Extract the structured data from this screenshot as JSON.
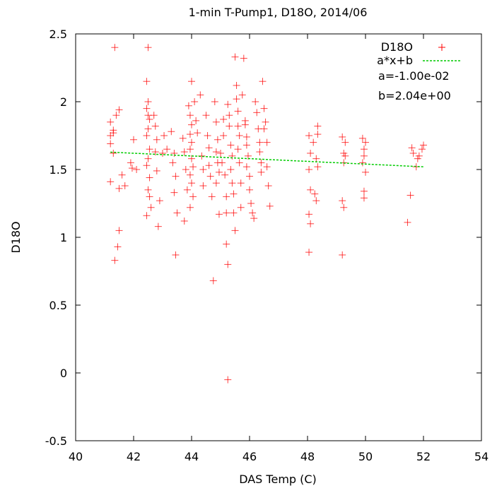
{
  "chart_data": {
    "type": "scatter",
    "title": "1-min T-Pump1, D18O, 2014/06",
    "xlabel": "DAS Temp (C)",
    "ylabel": "D18O",
    "xlim": [
      40,
      54
    ],
    "ylim": [
      -0.5,
      2.5
    ],
    "xticks": [
      "40",
      "42",
      "44",
      "46",
      "48",
      "50",
      "52",
      "54"
    ],
    "yticks": [
      "-0.5",
      "0",
      "0.5",
      "1",
      "1.5",
      "2",
      "2.5"
    ],
    "grid": false,
    "legend_position": "top-right",
    "series": [
      {
        "name": "D18O",
        "marker": "+",
        "color": "#ff0000",
        "points": [
          [
            41.2,
            1.85
          ],
          [
            41.2,
            1.75
          ],
          [
            41.3,
            1.79
          ],
          [
            41.2,
            1.69
          ],
          [
            41.3,
            1.62
          ],
          [
            41.2,
            1.41
          ],
          [
            41.3,
            1.77
          ],
          [
            41.35,
            2.4
          ],
          [
            41.4,
            1.9
          ],
          [
            41.45,
            0.93
          ],
          [
            41.35,
            0.83
          ],
          [
            41.5,
            1.05
          ],
          [
            41.5,
            1.36
          ],
          [
            41.5,
            1.94
          ],
          [
            41.6,
            1.46
          ],
          [
            41.7,
            1.38
          ],
          [
            41.9,
            1.55
          ],
          [
            41.95,
            1.51
          ],
          [
            42.1,
            1.5
          ],
          [
            42.0,
            1.72
          ],
          [
            42.5,
            2.4
          ],
          [
            42.45,
            2.15
          ],
          [
            42.5,
            2.0
          ],
          [
            42.45,
            1.95
          ],
          [
            42.5,
            1.9
          ],
          [
            42.55,
            1.87
          ],
          [
            42.5,
            1.8
          ],
          [
            42.45,
            1.75
          ],
          [
            42.55,
            1.65
          ],
          [
            42.5,
            1.58
          ],
          [
            42.45,
            1.53
          ],
          [
            42.55,
            1.44
          ],
          [
            42.5,
            1.35
          ],
          [
            42.55,
            1.3
          ],
          [
            42.45,
            1.16
          ],
          [
            42.6,
            1.22
          ],
          [
            42.7,
            1.9
          ],
          [
            42.75,
            1.82
          ],
          [
            42.8,
            1.72
          ],
          [
            42.75,
            1.63
          ],
          [
            42.8,
            1.49
          ],
          [
            42.85,
            1.08
          ],
          [
            42.9,
            1.27
          ],
          [
            43.0,
            1.62
          ],
          [
            43.05,
            1.75
          ],
          [
            43.15,
            1.65
          ],
          [
            43.3,
            1.78
          ],
          [
            43.4,
            1.62
          ],
          [
            43.35,
            1.55
          ],
          [
            43.45,
            1.45
          ],
          [
            43.4,
            1.33
          ],
          [
            43.5,
            1.18
          ],
          [
            43.45,
            0.87
          ],
          [
            43.7,
            1.73
          ],
          [
            43.75,
            1.63
          ],
          [
            43.8,
            1.5
          ],
          [
            43.85,
            1.35
          ],
          [
            43.75,
            1.12
          ],
          [
            43.9,
            1.97
          ],
          [
            43.95,
            1.9
          ],
          [
            44.0,
            1.83
          ],
          [
            43.95,
            1.76
          ],
          [
            44.0,
            1.7
          ],
          [
            43.95,
            1.65
          ],
          [
            44.0,
            1.58
          ],
          [
            44.05,
            1.52
          ],
          [
            43.95,
            1.46
          ],
          [
            44.0,
            1.4
          ],
          [
            44.05,
            1.3
          ],
          [
            43.95,
            1.22
          ],
          [
            44.0,
            2.15
          ],
          [
            44.1,
            2.0
          ],
          [
            44.15,
            1.86
          ],
          [
            44.2,
            1.77
          ],
          [
            44.3,
            2.05
          ],
          [
            44.35,
            1.6
          ],
          [
            44.4,
            1.5
          ],
          [
            44.4,
            1.38
          ],
          [
            44.5,
            1.9
          ],
          [
            44.55,
            1.75
          ],
          [
            44.6,
            1.66
          ],
          [
            44.6,
            1.53
          ],
          [
            44.65,
            1.45
          ],
          [
            44.7,
            1.3
          ],
          [
            44.75,
            0.68
          ],
          [
            44.8,
            2.0
          ],
          [
            44.85,
            1.85
          ],
          [
            44.9,
            1.72
          ],
          [
            44.85,
            1.63
          ],
          [
            44.9,
            1.55
          ],
          [
            44.95,
            1.48
          ],
          [
            44.85,
            1.4
          ],
          [
            44.95,
            1.17
          ],
          [
            45.0,
            1.62
          ],
          [
            45.05,
            1.55
          ],
          [
            45.1,
            1.75
          ],
          [
            45.1,
            1.87
          ],
          [
            45.15,
            1.46
          ],
          [
            45.2,
            1.3
          ],
          [
            45.2,
            1.18
          ],
          [
            45.2,
            0.95
          ],
          [
            45.25,
            0.8
          ],
          [
            45.25,
            -0.05
          ],
          [
            45.25,
            1.98
          ],
          [
            45.3,
            1.9
          ],
          [
            45.3,
            1.82
          ],
          [
            45.35,
            1.68
          ],
          [
            45.4,
            1.6
          ],
          [
            45.35,
            1.5
          ],
          [
            45.4,
            1.4
          ],
          [
            45.45,
            1.32
          ],
          [
            45.45,
            1.18
          ],
          [
            45.5,
            1.05
          ],
          [
            45.5,
            2.33
          ],
          [
            45.55,
            2.12
          ],
          [
            45.55,
            2.02
          ],
          [
            45.6,
            1.93
          ],
          [
            45.6,
            1.82
          ],
          [
            45.65,
            1.75
          ],
          [
            45.6,
            1.65
          ],
          [
            45.65,
            1.55
          ],
          [
            45.7,
            1.4
          ],
          [
            45.7,
            1.22
          ],
          [
            45.75,
            2.05
          ],
          [
            45.8,
            2.32
          ],
          [
            45.85,
            1.86
          ],
          [
            45.85,
            1.83
          ],
          [
            45.9,
            1.74
          ],
          [
            45.9,
            1.68
          ],
          [
            45.95,
            1.6
          ],
          [
            45.9,
            1.52
          ],
          [
            46.0,
            1.45
          ],
          [
            46.0,
            1.35
          ],
          [
            46.05,
            1.25
          ],
          [
            46.1,
            1.18
          ],
          [
            46.15,
            1.14
          ],
          [
            46.2,
            2.0
          ],
          [
            46.25,
            1.92
          ],
          [
            46.3,
            1.8
          ],
          [
            46.35,
            1.7
          ],
          [
            46.35,
            1.63
          ],
          [
            46.4,
            1.55
          ],
          [
            46.4,
            1.48
          ],
          [
            46.45,
            2.15
          ],
          [
            46.5,
            1.95
          ],
          [
            46.55,
            1.85
          ],
          [
            46.6,
            1.7
          ],
          [
            46.6,
            1.52
          ],
          [
            46.65,
            1.38
          ],
          [
            46.7,
            1.23
          ],
          [
            46.5,
            1.8
          ],
          [
            48.05,
            1.75
          ],
          [
            48.1,
            1.62
          ],
          [
            48.05,
            1.5
          ],
          [
            48.1,
            1.35
          ],
          [
            48.05,
            1.17
          ],
          [
            48.1,
            1.1
          ],
          [
            48.05,
            0.89
          ],
          [
            48.2,
            1.7
          ],
          [
            48.25,
            1.32
          ],
          [
            48.3,
            1.27
          ],
          [
            48.35,
            1.82
          ],
          [
            48.35,
            1.76
          ],
          [
            48.3,
            1.58
          ],
          [
            48.35,
            1.52
          ],
          [
            49.2,
            1.74
          ],
          [
            49.25,
            1.62
          ],
          [
            49.25,
            1.55
          ],
          [
            49.2,
            1.27
          ],
          [
            49.25,
            1.22
          ],
          [
            49.2,
            0.87
          ],
          [
            49.3,
            1.7
          ],
          [
            49.3,
            1.6
          ],
          [
            49.9,
            1.73
          ],
          [
            49.95,
            1.65
          ],
          [
            49.95,
            1.6
          ],
          [
            49.9,
            1.55
          ],
          [
            50.0,
            1.7
          ],
          [
            49.95,
            1.34
          ],
          [
            49.95,
            1.29
          ],
          [
            50.0,
            1.48
          ],
          [
            51.45,
            1.11
          ],
          [
            51.55,
            1.31
          ],
          [
            51.6,
            1.66
          ],
          [
            51.65,
            1.62
          ],
          [
            51.8,
            1.58
          ],
          [
            51.85,
            1.6
          ],
          [
            51.95,
            1.65
          ],
          [
            52.0,
            1.68
          ],
          [
            51.75,
            1.52
          ]
        ]
      },
      {
        "name": "a*x+b",
        "type": "line",
        "style": "dashed",
        "color": "#00cc00",
        "a": -0.01,
        "b": 2.04,
        "x_range": [
          41.2,
          52.0
        ]
      }
    ],
    "annotations": [
      "a=-1.00e-02",
      "b=2.04e+00"
    ]
  }
}
